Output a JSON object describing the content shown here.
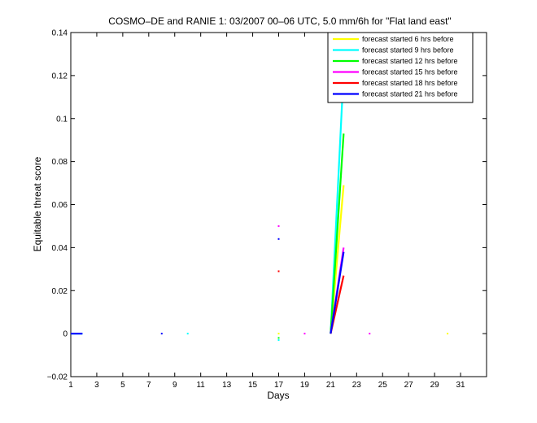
{
  "chart_data": {
    "type": "line",
    "title": "COSMO–DE and RANIE 1: 03/2007 00–06 UTC, 5.0 mm/6h for \"Flat land east\"",
    "xlabel": "Days",
    "ylabel": "Equitable threat score",
    "xlim": [
      1,
      33
    ],
    "ylim": [
      -0.02,
      0.14
    ],
    "xticks": [
      1,
      3,
      5,
      7,
      9,
      11,
      13,
      15,
      17,
      19,
      21,
      23,
      25,
      27,
      29,
      31
    ],
    "yticks": [
      -0.02,
      0,
      0.02,
      0.04,
      0.06,
      0.08,
      0.1,
      0.12,
      0.14
    ],
    "xtick_labels": [
      "1",
      "3",
      "5",
      "7",
      "9",
      "11",
      "13",
      "15",
      "17",
      "19",
      "21",
      "23",
      "25",
      "27",
      "29",
      "31"
    ],
    "ytick_labels": [
      "−0.02",
      "0",
      "0.02",
      "0.04",
      "0.06",
      "0.08",
      "0.1",
      "0.12",
      "0.14"
    ],
    "legend_position": "top-right",
    "series": [
      {
        "name": "forecast started 6 hrs before",
        "color": "#ffff00",
        "segments": [
          [
            [
              21,
              0.0
            ],
            [
              22,
              0.069
            ]
          ]
        ],
        "points": [
          [
            17,
            0.0
          ],
          [
            30,
            0.0
          ]
        ]
      },
      {
        "name": "forecast started 9 hrs before",
        "color": "#00ffff",
        "segments": [
          [
            [
              1,
              0.0
            ],
            [
              1.9,
              0.0
            ]
          ],
          [
            [
              21,
              0.0
            ],
            [
              22,
              0.122
            ]
          ]
        ],
        "points": [
          [
            10,
            0.0
          ],
          [
            17,
            -0.003
          ]
        ]
      },
      {
        "name": "forecast started 12 hrs before",
        "color": "#00ff00",
        "segments": [
          [
            [
              21,
              0.0
            ],
            [
              22,
              0.093
            ]
          ]
        ],
        "points": [
          [
            17,
            -0.002
          ]
        ]
      },
      {
        "name": "forecast started 15 hrs before",
        "color": "#ff00ff",
        "segments": [
          [
            [
              21,
              0.0
            ],
            [
              22,
              0.04
            ]
          ]
        ],
        "points": [
          [
            17,
            0.05
          ],
          [
            19,
            0.0
          ],
          [
            24,
            0.0
          ]
        ]
      },
      {
        "name": "forecast started 18 hrs before",
        "color": "#ff0000",
        "segments": [
          [
            [
              21,
              0.0
            ],
            [
              22,
              0.027
            ]
          ]
        ],
        "points": [
          [
            17,
            0.029
          ]
        ]
      },
      {
        "name": "forecast started 21 hrs before",
        "color": "#0000ff",
        "segments": [
          [
            [
              1,
              0.0
            ],
            [
              1.9,
              0.0
            ]
          ],
          [
            [
              21,
              0.0
            ],
            [
              22,
              0.038
            ]
          ]
        ],
        "points": [
          [
            8,
            0.0
          ],
          [
            17,
            0.044
          ]
        ]
      }
    ]
  }
}
